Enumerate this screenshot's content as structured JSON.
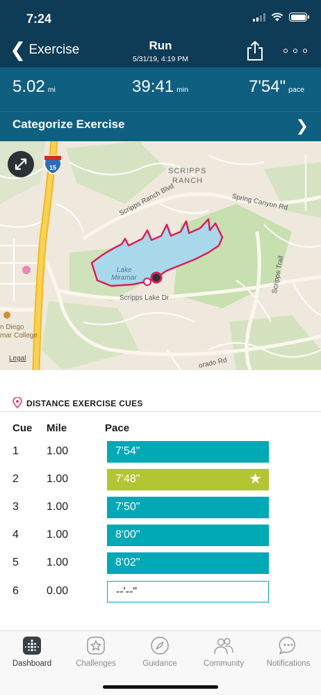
{
  "status": {
    "time": "7:24"
  },
  "nav": {
    "back_label": "Exercise",
    "title": "Run",
    "subtitle": "5/31/19, 4:19 PM",
    "share_icon": "share-icon",
    "more_icon": "more-icon"
  },
  "stats": {
    "distance": {
      "value": "5.02",
      "unit": "mi"
    },
    "duration": {
      "value": "39:41",
      "unit": "min"
    },
    "pace": {
      "value": "7'54\"",
      "unit": "pace"
    }
  },
  "categorize": {
    "label": "Categorize Exercise"
  },
  "map": {
    "labels": {
      "scripps": "SCRIPPS",
      "ranch": "RANCH",
      "scripps_ranch_blvd": "Scripps Ranch Blvd",
      "spring_canyon_rd": "Spring Canyon Rd",
      "lake": "Lake",
      "miramar": "Miramar",
      "scripps_lake_dr": "Scripps Lake Dr",
      "scripps_trail": "Scripps Trail",
      "orado_rd": "orado Rd",
      "san_diego": "n Diego",
      "college": "mar College",
      "highway": "15"
    },
    "legal": "Legal",
    "colors": {
      "water": "#a8d8ea",
      "route": "#d81e5b",
      "park": "#c8dfb0",
      "freeway": "#f6c94a"
    }
  },
  "cues": {
    "header": "DISTANCE EXERCISE CUES",
    "columns": {
      "cue": "Cue",
      "mile": "Mile",
      "pace": "Pace"
    },
    "rows": [
      {
        "cue": "1",
        "mile": "1.00",
        "pace": "7'54\"",
        "color": "#00a9b5",
        "best": false
      },
      {
        "cue": "2",
        "mile": "1.00",
        "pace": "7'48\"",
        "color": "#b3c532",
        "best": true
      },
      {
        "cue": "3",
        "mile": "1.00",
        "pace": "7'50\"",
        "color": "#00a9b5",
        "best": false
      },
      {
        "cue": "4",
        "mile": "1.00",
        "pace": "8'00\"",
        "color": "#00a9b5",
        "best": false
      },
      {
        "cue": "5",
        "mile": "1.00",
        "pace": "8'02\"",
        "color": "#00a9b5",
        "best": false
      },
      {
        "cue": "6",
        "mile": "0.00",
        "pace": "--'--\"",
        "color": "",
        "best": false
      }
    ]
  },
  "tabs": {
    "dashboard": "Dashboard",
    "challenges": "Challenges",
    "guidance": "Guidance",
    "community": "Community",
    "notifications": "Notifications"
  }
}
